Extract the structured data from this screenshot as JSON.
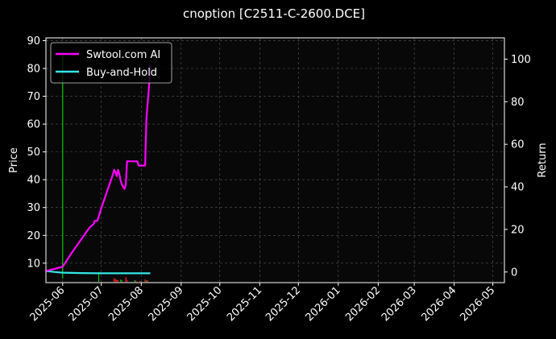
{
  "chart_data": {
    "type": "line",
    "title": "cnoption [C2511-C-2600.DCE]",
    "ylabel": "Price",
    "ylabel_right": "Return",
    "xlim": [
      "2025-05-19",
      "2026-05-10"
    ],
    "ylim": [
      3,
      91
    ],
    "ylim_right": [
      -5,
      110
    ],
    "x_ticks": [
      "2025-06",
      "2025-07",
      "2025-08",
      "2025-09",
      "2025-10",
      "2025-11",
      "2025-12",
      "2026-01",
      "2026-02",
      "2026-03",
      "2026-04",
      "2026-05"
    ],
    "y_ticks": [
      10,
      20,
      30,
      40,
      50,
      60,
      70,
      80,
      90
    ],
    "y_ticks_right": [
      0,
      20,
      40,
      60,
      80,
      100
    ],
    "grid": true,
    "legend_position": "top-left",
    "series": [
      {
        "name": "Swtool.com AI",
        "color": "#ff00ff",
        "axis": "right",
        "points": [
          [
            "2025-05-19",
            0.5
          ],
          [
            "2025-05-26",
            1.5
          ],
          [
            "2025-06-01",
            2.5
          ],
          [
            "2025-06-08",
            9
          ],
          [
            "2025-06-15",
            15
          ],
          [
            "2025-06-22",
            21
          ],
          [
            "2025-06-25",
            22.5
          ],
          [
            "2025-06-26",
            24
          ],
          [
            "2025-06-28",
            24
          ],
          [
            "2025-07-01",
            30
          ],
          [
            "2025-07-05",
            37
          ],
          [
            "2025-07-09",
            44
          ],
          [
            "2025-07-11",
            48
          ],
          [
            "2025-07-12",
            47
          ],
          [
            "2025-07-13",
            45
          ],
          [
            "2025-07-14",
            48
          ],
          [
            "2025-07-15",
            46
          ],
          [
            "2025-07-16",
            43
          ],
          [
            "2025-07-17",
            41
          ],
          [
            "2025-07-18",
            40
          ],
          [
            "2025-07-19",
            39
          ],
          [
            "2025-07-20",
            41
          ],
          [
            "2025-07-21",
            52
          ],
          [
            "2025-07-23",
            52
          ],
          [
            "2025-07-27",
            52
          ],
          [
            "2025-07-29",
            52
          ],
          [
            "2025-07-30",
            50
          ],
          [
            "2025-08-02",
            50
          ],
          [
            "2025-08-04",
            50
          ],
          [
            "2025-08-05",
            72
          ],
          [
            "2025-08-07",
            87
          ],
          [
            "2025-08-08",
            97
          ]
        ]
      },
      {
        "name": "Buy-and-Hold",
        "color": "#33e6e6",
        "axis": "right",
        "points": [
          [
            "2025-05-19",
            0.5
          ],
          [
            "2025-05-26",
            0
          ],
          [
            "2025-06-01",
            -0.3
          ],
          [
            "2025-06-15",
            -0.5
          ],
          [
            "2025-06-29",
            -0.6
          ],
          [
            "2025-07-13",
            -0.6
          ],
          [
            "2025-07-27",
            -0.6
          ],
          [
            "2025-08-08",
            -0.6
          ]
        ]
      }
    ],
    "price_bars": [
      {
        "x": "2025-06-01",
        "low": 4.5,
        "high": 85,
        "color": "#00cc00"
      },
      {
        "x": "2025-06-29",
        "low": 3.3,
        "high": 6.8,
        "color": "#00cc00"
      },
      {
        "x": "2025-07-11",
        "low": 3.3,
        "high": 4.6,
        "color": "#ff2020"
      },
      {
        "x": "2025-07-12",
        "low": 3.3,
        "high": 4.3,
        "color": "#ff2020"
      },
      {
        "x": "2025-07-13",
        "low": 3.3,
        "high": 4.0,
        "color": "#ff2020"
      },
      {
        "x": "2025-07-14",
        "low": 3.3,
        "high": 3.9,
        "color": "#ff2020"
      },
      {
        "x": "2025-07-16",
        "low": 3.3,
        "high": 4.1,
        "color": "#00cc00"
      },
      {
        "x": "2025-07-17",
        "low": 3.3,
        "high": 3.8,
        "color": "#00cc00"
      },
      {
        "x": "2025-07-20",
        "low": 3.3,
        "high": 5.0,
        "color": "#ff2020"
      },
      {
        "x": "2025-07-21",
        "low": 3.3,
        "high": 4.0,
        "color": "#ff2020"
      },
      {
        "x": "2025-07-27",
        "low": 3.3,
        "high": 3.9,
        "color": "#00cc00"
      },
      {
        "x": "2025-07-28",
        "low": 3.3,
        "high": 3.7,
        "color": "#ff2020"
      },
      {
        "x": "2025-07-31",
        "low": 3.3,
        "high": 3.6,
        "color": "#ff2020"
      },
      {
        "x": "2025-08-04",
        "low": 3.3,
        "high": 4.2,
        "color": "#ff2020"
      },
      {
        "x": "2025-08-05",
        "low": 3.3,
        "high": 3.7,
        "color": "#00cc00"
      },
      {
        "x": "2025-08-06",
        "low": 3.3,
        "high": 3.9,
        "color": "#ff2020"
      }
    ]
  }
}
